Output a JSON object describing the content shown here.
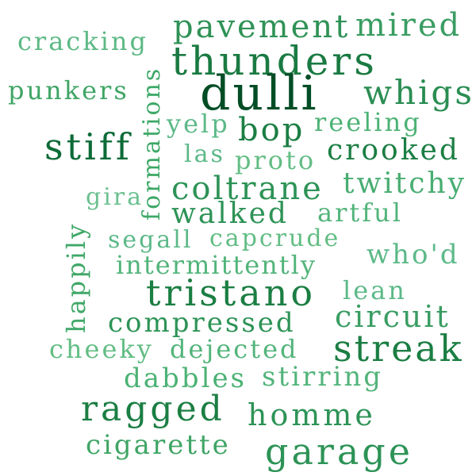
{
  "colors": {
    "darkest": "#004d25",
    "dark": "#0d6b37",
    "medium": "#2a8b53",
    "light": "#49ad72",
    "lighter": "#63bd84"
  },
  "words": [
    {
      "text": "pavement",
      "color": "#2f9256"
    },
    {
      "text": "mired",
      "color": "#3a9d63"
    },
    {
      "text": "cracking",
      "color": "#5db985"
    },
    {
      "text": "thunders",
      "color": "#1a7a42"
    },
    {
      "text": "formations",
      "color": "#3da866"
    },
    {
      "text": "punkers",
      "color": "#3fa565"
    },
    {
      "text": "dulli",
      "color": "#004d25"
    },
    {
      "text": "whigs",
      "color": "#2a8d52"
    },
    {
      "text": "yelp",
      "color": "#5cb988"
    },
    {
      "text": "bop",
      "color": "#1b7e43"
    },
    {
      "text": "reeling",
      "color": "#4cb274"
    },
    {
      "text": "stiff",
      "color": "#0d6b37"
    },
    {
      "text": "las",
      "color": "#5cb988"
    },
    {
      "text": "proto",
      "color": "#63bd84"
    },
    {
      "text": "crooked",
      "color": "#1b7e43"
    },
    {
      "text": "gira",
      "color": "#6cc190"
    },
    {
      "text": "coltrane",
      "color": "#2d9356"
    },
    {
      "text": "twitchy",
      "color": "#49ad72"
    },
    {
      "text": "happily",
      "color": "#40a868"
    },
    {
      "text": "walked",
      "color": "#2d9356"
    },
    {
      "text": "artful",
      "color": "#52b47a"
    },
    {
      "text": "segall",
      "color": "#5cb988"
    },
    {
      "text": "capcrude",
      "color": "#63bd84"
    },
    {
      "text": "intermittently",
      "color": "#52b47a"
    },
    {
      "text": "who'd",
      "color": "#5cb988"
    },
    {
      "text": "tristano",
      "color": "#1b7e43"
    },
    {
      "text": "lean",
      "color": "#5cb988"
    },
    {
      "text": "compressed",
      "color": "#2d9356"
    },
    {
      "text": "circuit",
      "color": "#3a9d63"
    },
    {
      "text": "cheeky",
      "color": "#63bd84"
    },
    {
      "text": "dejected",
      "color": "#52b47a"
    },
    {
      "text": "streak",
      "color": "#1b7e43"
    },
    {
      "text": "dabbles",
      "color": "#4cb274"
    },
    {
      "text": "stirring",
      "color": "#52b47a"
    },
    {
      "text": "ragged",
      "color": "#1b7e43"
    },
    {
      "text": "homme",
      "color": "#2d9356"
    },
    {
      "text": "cigarette",
      "color": "#3fa565"
    },
    {
      "text": "garage",
      "color": "#2d9356"
    }
  ]
}
